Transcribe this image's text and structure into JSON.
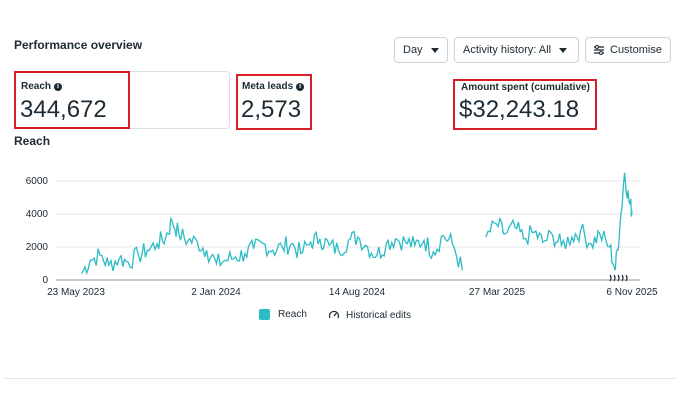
{
  "header": {
    "title": "Performance overview",
    "day_label": "Day",
    "activity_label": "Activity history: All",
    "customise_label": "Customise"
  },
  "metrics": [
    {
      "label": "Reach",
      "value": "344,672"
    },
    {
      "label": "Meta leads",
      "value": "2,573"
    },
    {
      "label": "Amount spent (cumulative)",
      "value": "$32,243.18"
    }
  ],
  "section_title": "Reach",
  "legend": {
    "reach": "Reach",
    "edits": "Historical edits"
  },
  "colors": {
    "series": "#2bbcc4",
    "highlight": "#d81f26"
  },
  "chart_data": {
    "type": "line",
    "title": "",
    "xlabel": "",
    "ylabel": "",
    "yticks": [
      "0",
      "2000",
      "4000",
      "6000"
    ],
    "ylim": [
      0,
      6000
    ],
    "xticks": [
      "23 May 2023",
      "2 Jan 2024",
      "14 Aug 2024",
      "27 Mar 2025",
      "6 Nov 2025"
    ],
    "x_range": [
      "2023-05-23",
      "2025-11-06"
    ],
    "grid": true,
    "legend_position": "bottom",
    "series": [
      {
        "name": "Reach",
        "color": "#2bbcc4",
        "points": [
          [
            "2023-06-01",
            400
          ],
          [
            "2023-06-15",
            1200
          ],
          [
            "2023-07-01",
            1500
          ],
          [
            "2023-07-15",
            900
          ],
          [
            "2023-08-01",
            1300
          ],
          [
            "2023-08-15",
            1100
          ],
          [
            "2023-09-01",
            1500
          ],
          [
            "2023-09-15",
            1800
          ],
          [
            "2023-10-01",
            2200
          ],
          [
            "2023-10-15",
            2600
          ],
          [
            "2023-10-25",
            3600
          ],
          [
            "2023-11-05",
            2800
          ],
          [
            "2023-11-20",
            2400
          ],
          [
            "2023-12-05",
            2300
          ],
          [
            "2023-12-20",
            1800
          ],
          [
            "2024-01-05",
            1000
          ],
          [
            "2024-01-20",
            1200
          ],
          [
            "2024-02-05",
            1400
          ],
          [
            "2024-02-20",
            1600
          ],
          [
            "2024-03-05",
            1900
          ],
          [
            "2024-03-20",
            2200
          ],
          [
            "2024-04-05",
            1800
          ],
          [
            "2024-04-20",
            2000
          ],
          [
            "2024-05-05",
            2200
          ],
          [
            "2024-05-20",
            1600
          ],
          [
            "2024-06-05",
            2300
          ],
          [
            "2024-06-20",
            2500
          ],
          [
            "2024-07-05",
            2100
          ],
          [
            "2024-07-20",
            1800
          ],
          [
            "2024-08-05",
            2400
          ],
          [
            "2024-08-20",
            2600
          ],
          [
            "2024-09-05",
            2000
          ],
          [
            "2024-09-20",
            1500
          ],
          [
            "2024-10-05",
            2200
          ],
          [
            "2024-10-20",
            2500
          ],
          [
            "2024-11-05",
            2300
          ],
          [
            "2024-11-20",
            2100
          ],
          [
            "2024-12-05",
            2400
          ],
          [
            "2024-12-20",
            1700
          ],
          [
            "2025-01-05",
            2700
          ],
          [
            "2025-01-20",
            2200
          ],
          [
            "2025-02-05",
            600
          ],
          [
            "2025-02-20",
            null
          ],
          [
            "2025-03-05",
            null
          ],
          [
            "2025-03-15",
            2600
          ],
          [
            "2025-04-01",
            3400
          ],
          [
            "2025-04-15",
            2800
          ],
          [
            "2025-05-01",
            3200
          ],
          [
            "2025-05-15",
            2500
          ],
          [
            "2025-06-01",
            2900
          ],
          [
            "2025-06-15",
            2300
          ],
          [
            "2025-07-01",
            2700
          ],
          [
            "2025-07-15",
            2100
          ],
          [
            "2025-08-01",
            2600
          ],
          [
            "2025-08-15",
            3000
          ],
          [
            "2025-09-01",
            2200
          ],
          [
            "2025-09-15",
            2800
          ],
          [
            "2025-10-01",
            2000
          ],
          [
            "2025-10-10",
            600
          ],
          [
            "2025-10-18",
            3500
          ],
          [
            "2025-10-25",
            6500
          ],
          [
            "2025-11-01",
            4800
          ],
          [
            "2025-11-06",
            4200
          ]
        ]
      }
    ]
  }
}
